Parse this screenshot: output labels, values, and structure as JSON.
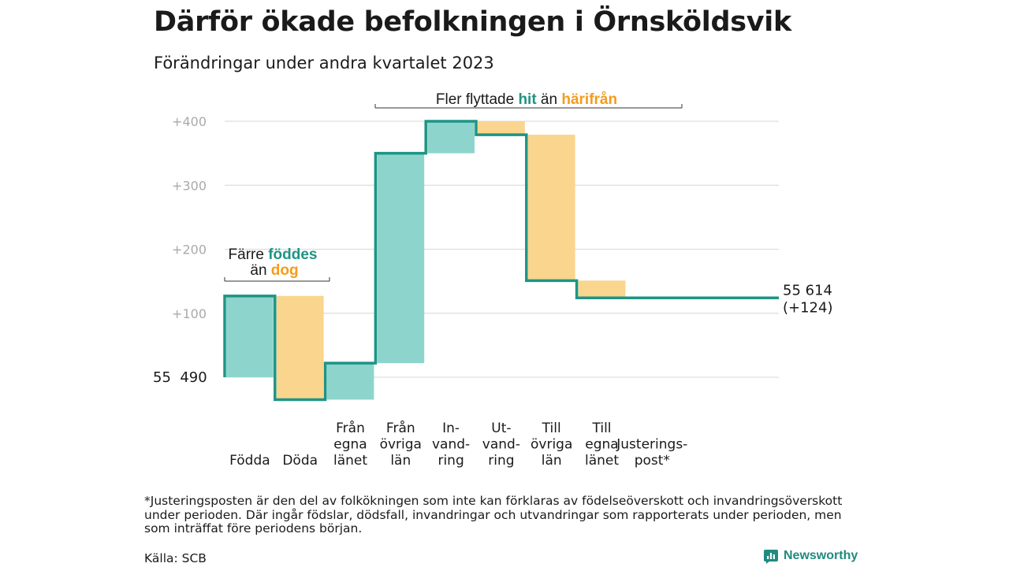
{
  "title": "Därför ökade befolkningen i Örnsköldsvik",
  "subtitle": "Förändringar under andra kvartalet 2023",
  "footnote": "*Justeringsposten är den del av folkökningen som inte kan förklaras av födelseöverskott och invandringsöverskott under perioden. Där ingår födslar, dödsfall, invandringar och utvandringar som rapporterats under perioden, men som inträffat före periodens början.",
  "source": "Källa: SCB",
  "brand": "Newsworthy",
  "chart_data": {
    "type": "waterfall",
    "y_ticks": [
      100,
      200,
      300,
      400
    ],
    "y_tick_labels": [
      "+100",
      "+200",
      "+300",
      "+400"
    ],
    "ylim": [
      -40,
      420
    ],
    "start_label": "55  490",
    "end_label_value": "55 614",
    "end_label_change": "(+124)",
    "steps": [
      {
        "label": [
          "Födda"
        ],
        "change": 127,
        "kind": "in"
      },
      {
        "label": [
          "Döda"
        ],
        "change": -162,
        "kind": "out"
      },
      {
        "label": [
          "Från",
          "egna",
          "länet"
        ],
        "change": 57,
        "kind": "in"
      },
      {
        "label": [
          "Från",
          "övriga",
          "län"
        ],
        "change": 328,
        "kind": "in"
      },
      {
        "label": [
          "In-",
          "vand-",
          "ring"
        ],
        "change": 50,
        "kind": "in"
      },
      {
        "label": [
          "Ut-",
          "vand-",
          "ring"
        ],
        "change": -21,
        "kind": "out"
      },
      {
        "label": [
          "Till",
          "övriga",
          "län"
        ],
        "change": -228,
        "kind": "out"
      },
      {
        "label": [
          "Till",
          "egna",
          "länet"
        ],
        "change": -27,
        "kind": "out"
      },
      {
        "label": [
          "Justerings-",
          "post*"
        ],
        "change": 0,
        "kind": "in"
      }
    ],
    "annotation_births": {
      "line1": "Färre ",
      "line1_hl": "föddes",
      "line2": "än ",
      "line2_hl": "dog"
    },
    "annotation_migration": {
      "text": "Fler flyttade ",
      "hl1": "hit",
      "mid": " än ",
      "hl2": "härifrån"
    },
    "colors": {
      "in_fill": "#8dd5cc",
      "out_fill": "#fad58e",
      "line": "#1e9485",
      "in_text": "#1e9485",
      "out_text": "#f39c1e",
      "grid": "#dddddd",
      "tick": "#aaaaaa"
    }
  }
}
